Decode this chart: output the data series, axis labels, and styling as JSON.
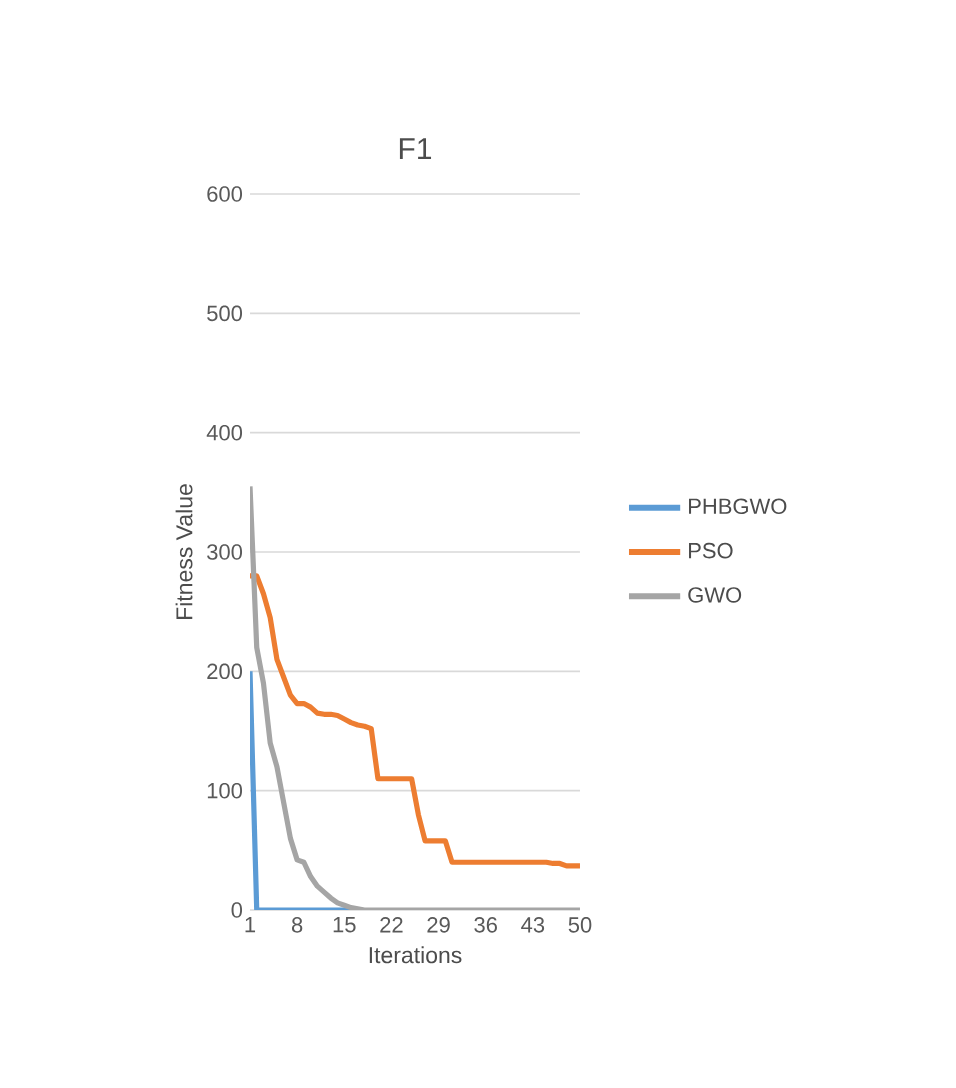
{
  "chart_data": {
    "type": "line",
    "title": "F1",
    "xlabel": "Iterations",
    "ylabel": "Fitness Value",
    "x": [
      1,
      2,
      3,
      4,
      5,
      6,
      7,
      8,
      9,
      10,
      11,
      12,
      13,
      14,
      15,
      16,
      17,
      18,
      19,
      20,
      21,
      22,
      23,
      24,
      25,
      26,
      27,
      28,
      29,
      30,
      31,
      32,
      33,
      34,
      35,
      36,
      37,
      38,
      39,
      40,
      41,
      42,
      43,
      44,
      45,
      46,
      47,
      48,
      49,
      50
    ],
    "series": [
      {
        "name": "PHBGWO",
        "color": "#5b9bd5",
        "values": [
          200,
          0,
          0,
          0,
          0,
          0,
          0,
          0,
          0,
          0,
          0,
          0,
          0,
          0,
          0,
          0,
          0,
          null,
          null,
          null,
          null,
          null,
          null,
          null,
          null,
          null,
          null,
          null,
          null,
          null,
          null,
          null,
          null,
          null,
          null,
          null,
          null,
          null,
          null,
          null,
          null,
          null,
          null,
          null,
          null,
          null,
          null,
          null,
          null,
          null
        ]
      },
      {
        "name": "PSO",
        "color": "#ed7d31",
        "values": [
          280,
          280,
          265,
          245,
          210,
          195,
          180,
          173,
          173,
          170,
          165,
          164,
          164,
          163,
          160,
          157,
          155,
          154,
          152,
          110,
          110,
          110,
          110,
          110,
          110,
          80,
          58,
          58,
          58,
          58,
          40,
          40,
          40,
          40,
          40,
          40,
          40,
          40,
          40,
          40,
          40,
          40,
          40,
          40,
          40,
          39,
          39,
          37,
          37,
          37
        ]
      },
      {
        "name": "GWO",
        "color": "#a5a5a5",
        "values": [
          355,
          220,
          190,
          140,
          120,
          90,
          60,
          42,
          40,
          28,
          20,
          15,
          10,
          6,
          4,
          2,
          1,
          0,
          0,
          0,
          0,
          0,
          0,
          0,
          0,
          0,
          0,
          0,
          0,
          0,
          0,
          0,
          0,
          0,
          0,
          0,
          0,
          0,
          0,
          0,
          0,
          0,
          0,
          0,
          0,
          0,
          0,
          0,
          0,
          0
        ]
      }
    ],
    "xlim": [
      1,
      50
    ],
    "ylim": [
      0,
      600
    ],
    "xticks": [
      1,
      8,
      15,
      22,
      29,
      36,
      43,
      50
    ],
    "yticks": [
      0,
      100,
      200,
      300,
      400,
      500,
      600
    ],
    "grid": "y",
    "legend": "right",
    "marker": "none",
    "line_style": "solid"
  }
}
